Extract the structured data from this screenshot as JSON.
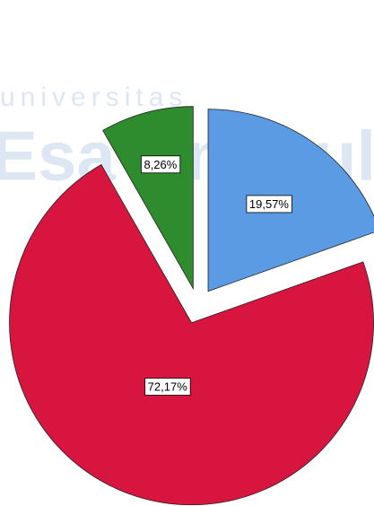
{
  "watermark": [
    "universitas",
    "Esa Unggul"
  ],
  "chart_data": {
    "type": "pie",
    "categories": [
      "Blue",
      "Red",
      "Green"
    ],
    "values": [
      19.57,
      72.17,
      8.26
    ],
    "value_labels": [
      "19,57%",
      "72,17%",
      "8,26%"
    ],
    "colors": [
      "#5b9be3",
      "#d7153f",
      "#2e8b2e"
    ]
  }
}
